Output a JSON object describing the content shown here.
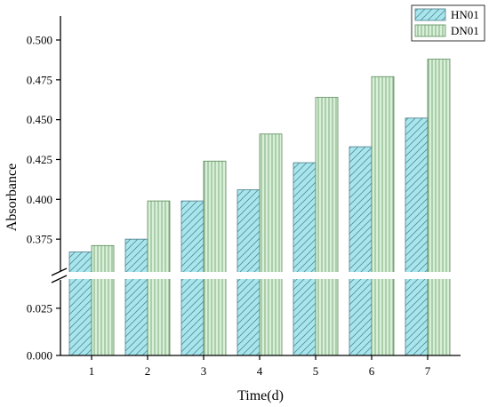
{
  "chart_data": {
    "type": "bar",
    "title": "",
    "xlabel": "Time(d)",
    "ylabel": "Absorbance",
    "categories": [
      "1",
      "2",
      "3",
      "4",
      "5",
      "6",
      "7"
    ],
    "series": [
      {
        "name": "HN01",
        "values": [
          0.367,
          0.375,
          0.399,
          0.406,
          0.423,
          0.433,
          0.451
        ],
        "color": "#a8e6ee",
        "pattern": "diagonal-hatch"
      },
      {
        "name": "DN01",
        "values": [
          0.371,
          0.399,
          0.424,
          0.441,
          0.464,
          0.477,
          0.488
        ],
        "color": "#d8f0d8",
        "pattern": "vertical-lines"
      }
    ],
    "axis_break": {
      "lower_range": [
        0,
        0.04
      ],
      "upper_range": [
        0.355,
        0.5
      ]
    },
    "yticks_lower": [
      "0.000",
      "0.025"
    ],
    "yticks_upper": [
      "0.375",
      "0.400",
      "0.425",
      "0.450",
      "0.475",
      "0.500"
    ],
    "legend_position": "top-right",
    "grid": false
  }
}
